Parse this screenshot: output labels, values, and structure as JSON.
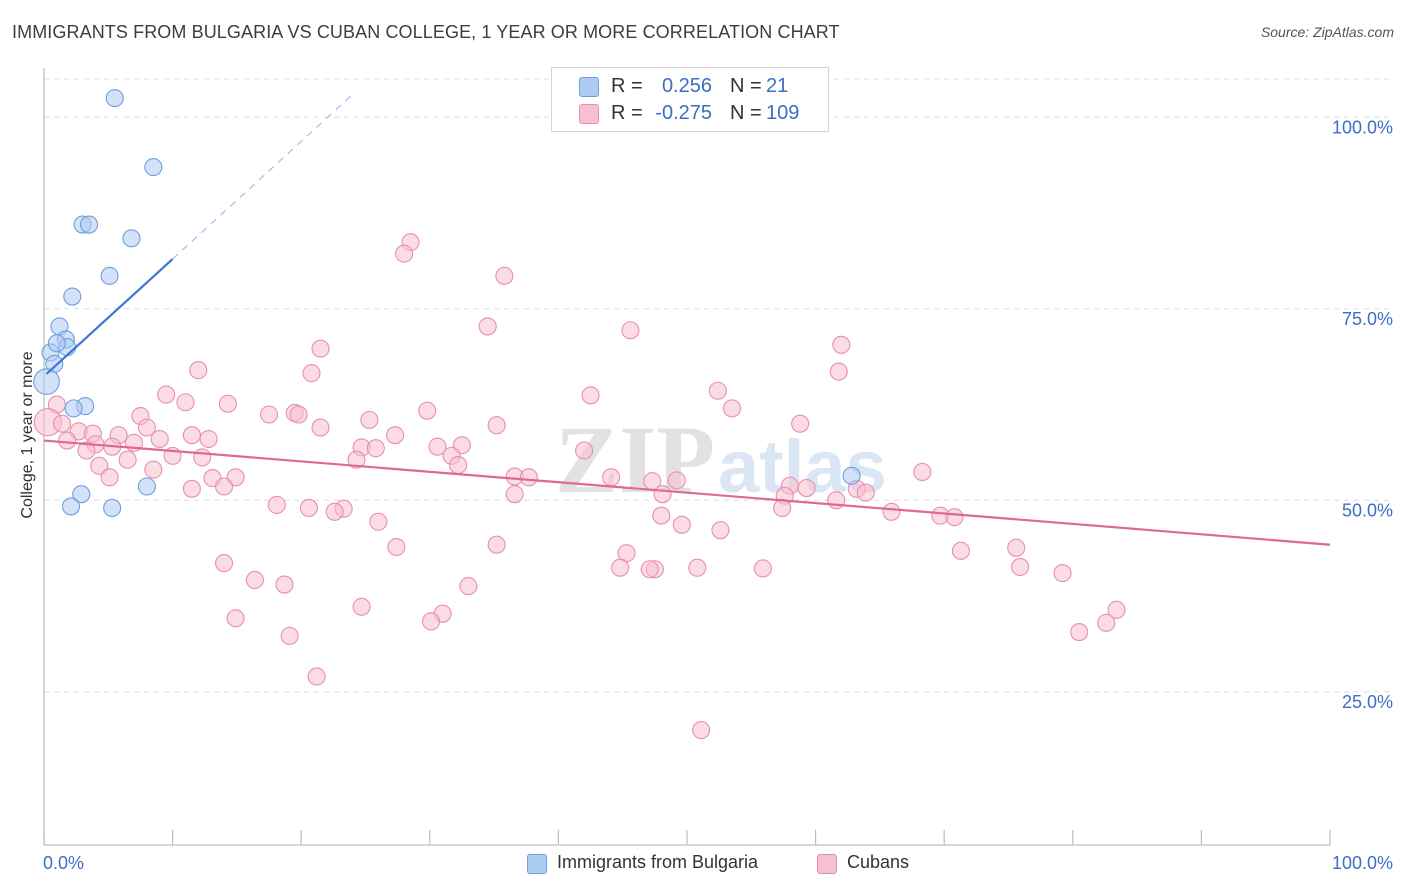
{
  "title": "IMMIGRANTS FROM BULGARIA VS CUBAN COLLEGE, 1 YEAR OR MORE CORRELATION CHART",
  "source": "Source: ZipAtlas.com",
  "watermark": {
    "zip": "ZIP",
    "atlas": "atlas"
  },
  "legend": {
    "rows": [
      {
        "r_label": "R =",
        "r_value": "0.256",
        "n_label": "N =",
        "n_value": "21",
        "color": "#aecbf2",
        "border": "#6d9fe0"
      },
      {
        "r_label": "R =",
        "r_value": "-0.275",
        "n_label": "N =",
        "n_value": "109",
        "color": "#f7bfd0",
        "border": "#e88fac"
      }
    ]
  },
  "bottom_legend": [
    {
      "label": "Immigrants from Bulgaria",
      "color": "#aecbf2",
      "border": "#6d9fe0"
    },
    {
      "label": "Cubans",
      "color": "#f7bfd0",
      "border": "#e88fac"
    }
  ],
  "chart_data": {
    "type": "scatter",
    "title": "IMMIGRANTS FROM BULGARIA VS CUBAN COLLEGE, 1 YEAR OR MORE CORRELATION CHART",
    "xlabel": "",
    "ylabel": "College, 1 year or more",
    "xlim": [
      0,
      100
    ],
    "ylim": [
      5,
      105
    ],
    "x_tick_labels": [
      "0.0%",
      "100.0%"
    ],
    "y_tick_labels": [
      "25.0%",
      "50.0%",
      "75.0%",
      "100.0%"
    ],
    "y_ticks": [
      25,
      50,
      75,
      100
    ],
    "series": [
      {
        "name": "Immigrants from Bulgaria",
        "color": "#aecbf2",
        "stroke": "#6d9fe0",
        "trend": {
          "x0": 0.2,
          "y0": 66.5,
          "x1": 10,
          "y1": 81.5,
          "dash_to_x": 24,
          "dash_to_y": 103,
          "color": "#3a78d4"
        },
        "points": [
          {
            "x": 5.5,
            "y": 102.5,
            "s": 1
          },
          {
            "x": 8.5,
            "y": 93.5,
            "s": 1
          },
          {
            "x": 3.0,
            "y": 86,
            "s": 1
          },
          {
            "x": 3.5,
            "y": 86,
            "s": 1
          },
          {
            "x": 6.8,
            "y": 84.2,
            "s": 1
          },
          {
            "x": 5.1,
            "y": 79.3,
            "s": 1
          },
          {
            "x": 2.2,
            "y": 76.6,
            "s": 1
          },
          {
            "x": 1.2,
            "y": 72.7,
            "s": 1
          },
          {
            "x": 1.7,
            "y": 71.0,
            "s": 1
          },
          {
            "x": 1.8,
            "y": 70.0,
            "s": 1
          },
          {
            "x": 0.5,
            "y": 69.3,
            "s": 1
          },
          {
            "x": 0.8,
            "y": 67.8,
            "s": 1
          },
          {
            "x": 0.2,
            "y": 65.5,
            "s": 1.5
          },
          {
            "x": 1.0,
            "y": 70.5,
            "s": 1
          },
          {
            "x": 3.2,
            "y": 62.3,
            "s": 1
          },
          {
            "x": 2.3,
            "y": 62.0,
            "s": 1
          },
          {
            "x": 8.0,
            "y": 51.8,
            "s": 1
          },
          {
            "x": 2.9,
            "y": 50.8,
            "s": 1
          },
          {
            "x": 2.1,
            "y": 49.2,
            "s": 1
          },
          {
            "x": 5.3,
            "y": 49.0,
            "s": 1
          },
          {
            "x": 62.8,
            "y": 53.2,
            "s": 1
          }
        ]
      },
      {
        "name": "Cubans",
        "color": "#f7bfd0",
        "stroke": "#e88fac",
        "trend": {
          "x0": 0,
          "y0": 57.8,
          "x1": 100,
          "y1": 44.2,
          "color": "#e0679a"
        },
        "points": [
          {
            "x": 28.5,
            "y": 83.7
          },
          {
            "x": 28.0,
            "y": 82.2
          },
          {
            "x": 35.8,
            "y": 79.3
          },
          {
            "x": 34.5,
            "y": 72.7
          },
          {
            "x": 45.6,
            "y": 72.2
          },
          {
            "x": 62.0,
            "y": 70.3
          },
          {
            "x": 21.5,
            "y": 69.8
          },
          {
            "x": 12.0,
            "y": 67.0
          },
          {
            "x": 20.8,
            "y": 66.6
          },
          {
            "x": 61.8,
            "y": 66.8
          },
          {
            "x": 52.4,
            "y": 64.3
          },
          {
            "x": 9.5,
            "y": 63.8
          },
          {
            "x": 42.5,
            "y": 63.7
          },
          {
            "x": 14.3,
            "y": 62.6
          },
          {
            "x": 53.5,
            "y": 62.0
          },
          {
            "x": 11.0,
            "y": 62.8
          },
          {
            "x": 1.0,
            "y": 62.5
          },
          {
            "x": 29.8,
            "y": 61.7
          },
          {
            "x": 19.5,
            "y": 61.4
          },
          {
            "x": 17.5,
            "y": 61.2
          },
          {
            "x": 19.8,
            "y": 61.2
          },
          {
            "x": 7.5,
            "y": 61.0
          },
          {
            "x": 25.3,
            "y": 60.5
          },
          {
            "x": 35.2,
            "y": 59.8
          },
          {
            "x": 58.8,
            "y": 60.0
          },
          {
            "x": 0.3,
            "y": 60.2,
            "s": 1.6
          },
          {
            "x": 1.4,
            "y": 60.0
          },
          {
            "x": 21.5,
            "y": 59.5
          },
          {
            "x": 8.0,
            "y": 59.5
          },
          {
            "x": 2.7,
            "y": 59.0
          },
          {
            "x": 3.8,
            "y": 58.7
          },
          {
            "x": 5.8,
            "y": 58.5
          },
          {
            "x": 27.3,
            "y": 58.5
          },
          {
            "x": 11.5,
            "y": 58.5
          },
          {
            "x": 9.0,
            "y": 58.0
          },
          {
            "x": 12.8,
            "y": 58.0
          },
          {
            "x": 7.0,
            "y": 57.5
          },
          {
            "x": 4.0,
            "y": 57.3
          },
          {
            "x": 1.8,
            "y": 57.8
          },
          {
            "x": 5.3,
            "y": 57.0
          },
          {
            "x": 3.3,
            "y": 56.5
          },
          {
            "x": 30.6,
            "y": 57.0
          },
          {
            "x": 24.7,
            "y": 56.9
          },
          {
            "x": 32.5,
            "y": 57.2
          },
          {
            "x": 25.8,
            "y": 56.8
          },
          {
            "x": 42.0,
            "y": 56.5
          },
          {
            "x": 10.0,
            "y": 55.8
          },
          {
            "x": 6.5,
            "y": 55.3
          },
          {
            "x": 12.3,
            "y": 55.6
          },
          {
            "x": 31.7,
            "y": 55.8
          },
          {
            "x": 32.2,
            "y": 54.6
          },
          {
            "x": 24.3,
            "y": 55.3
          },
          {
            "x": 8.5,
            "y": 54.0
          },
          {
            "x": 4.3,
            "y": 54.5
          },
          {
            "x": 36.6,
            "y": 53.1
          },
          {
            "x": 37.7,
            "y": 53.0
          },
          {
            "x": 5.1,
            "y": 53.0
          },
          {
            "x": 13.1,
            "y": 52.9
          },
          {
            "x": 14.9,
            "y": 53.0
          },
          {
            "x": 44.1,
            "y": 53.0
          },
          {
            "x": 47.3,
            "y": 52.5
          },
          {
            "x": 49.2,
            "y": 52.6
          },
          {
            "x": 58.0,
            "y": 51.9
          },
          {
            "x": 59.3,
            "y": 51.6
          },
          {
            "x": 63.2,
            "y": 51.5
          },
          {
            "x": 14.0,
            "y": 51.8
          },
          {
            "x": 11.5,
            "y": 51.5
          },
          {
            "x": 68.3,
            "y": 53.7
          },
          {
            "x": 63.9,
            "y": 51.0
          },
          {
            "x": 36.6,
            "y": 50.8
          },
          {
            "x": 48.1,
            "y": 50.8
          },
          {
            "x": 57.6,
            "y": 50.6
          },
          {
            "x": 61.6,
            "y": 50.0
          },
          {
            "x": 18.1,
            "y": 49.4
          },
          {
            "x": 23.3,
            "y": 48.9
          },
          {
            "x": 57.4,
            "y": 49.0
          },
          {
            "x": 20.6,
            "y": 49.0
          },
          {
            "x": 22.6,
            "y": 48.5
          },
          {
            "x": 65.9,
            "y": 48.5
          },
          {
            "x": 69.7,
            "y": 48.0
          },
          {
            "x": 70.8,
            "y": 47.8
          },
          {
            "x": 48.0,
            "y": 48.0
          },
          {
            "x": 26.0,
            "y": 47.2
          },
          {
            "x": 52.6,
            "y": 46.1
          },
          {
            "x": 49.6,
            "y": 46.8
          },
          {
            "x": 35.2,
            "y": 44.2
          },
          {
            "x": 27.4,
            "y": 43.9
          },
          {
            "x": 45.3,
            "y": 43.1
          },
          {
            "x": 71.3,
            "y": 43.4
          },
          {
            "x": 75.6,
            "y": 43.8
          },
          {
            "x": 14.0,
            "y": 41.8
          },
          {
            "x": 44.8,
            "y": 41.2
          },
          {
            "x": 50.8,
            "y": 41.2
          },
          {
            "x": 55.9,
            "y": 41.1
          },
          {
            "x": 47.5,
            "y": 41.0
          },
          {
            "x": 47.1,
            "y": 41.0
          },
          {
            "x": 75.9,
            "y": 41.3
          },
          {
            "x": 16.4,
            "y": 39.6
          },
          {
            "x": 18.7,
            "y": 39.0
          },
          {
            "x": 79.2,
            "y": 40.5
          },
          {
            "x": 33.0,
            "y": 38.8
          },
          {
            "x": 24.7,
            "y": 36.1
          },
          {
            "x": 31.0,
            "y": 35.2
          },
          {
            "x": 14.9,
            "y": 34.6
          },
          {
            "x": 83.4,
            "y": 35.7
          },
          {
            "x": 30.1,
            "y": 34.2
          },
          {
            "x": 19.1,
            "y": 32.3
          },
          {
            "x": 80.5,
            "y": 32.8
          },
          {
            "x": 82.6,
            "y": 34.0
          },
          {
            "x": 21.2,
            "y": 27.0
          },
          {
            "x": 51.1,
            "y": 20.0
          }
        ]
      }
    ]
  }
}
